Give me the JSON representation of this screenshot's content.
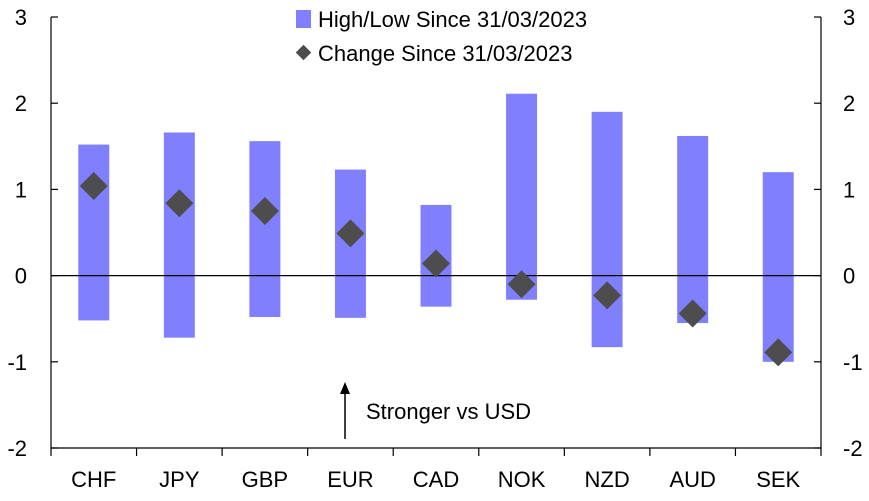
{
  "chart_data": {
    "type": "bar",
    "categories": [
      "CHF",
      "JPY",
      "GBP",
      "EUR",
      "CAD",
      "NOK",
      "NZD",
      "AUD",
      "SEK"
    ],
    "series": [
      {
        "name": "High/Low Since 31/03/2023",
        "kind": "floating-bar",
        "high": [
          1.52,
          1.66,
          1.56,
          1.23,
          0.82,
          2.11,
          1.9,
          1.62,
          1.2
        ],
        "low": [
          -0.52,
          -0.72,
          -0.48,
          -0.49,
          -0.36,
          -0.28,
          -0.83,
          -0.55,
          -1.0
        ],
        "color": "#8080ff"
      },
      {
        "name": "Change Since 31/03/2023",
        "kind": "marker",
        "marker": "diamond",
        "values": [
          1.04,
          0.84,
          0.75,
          0.49,
          0.14,
          -0.1,
          -0.23,
          -0.44,
          -0.89
        ],
        "color": "#4d4d4d"
      }
    ],
    "ylim": [
      -2,
      3
    ],
    "yticks": [
      "-2",
      "-1",
      "0",
      "1",
      "2",
      "3"
    ],
    "secondary_y": true,
    "legend": {
      "position": "top-center",
      "entries": [
        "High/Low Since 31/03/2023",
        "Change Since 31/03/2023"
      ]
    },
    "annotations": [
      {
        "text": "Stronger vs USD",
        "arrow": "up",
        "at_category": "EUR"
      }
    ],
    "title": "",
    "xlabel": "",
    "ylabel": ""
  }
}
